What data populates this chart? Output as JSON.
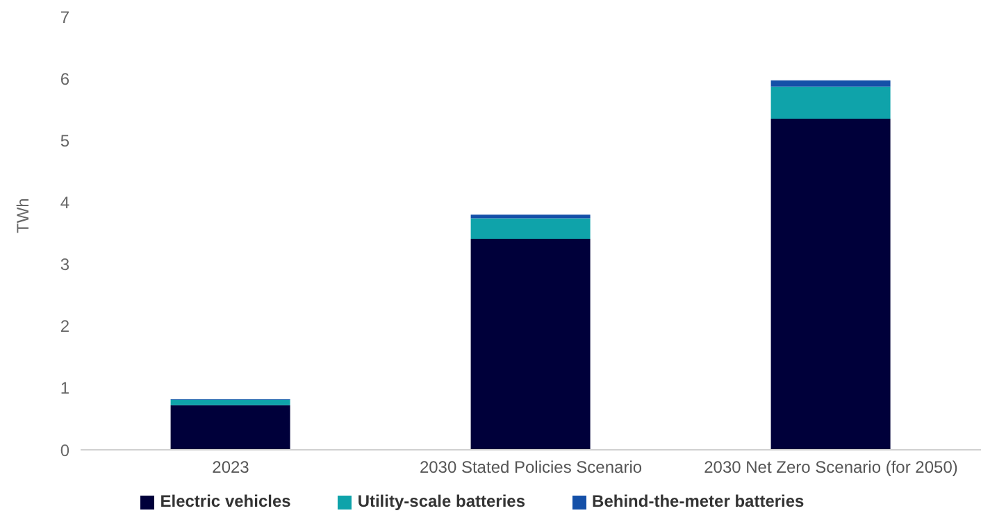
{
  "chart_data": {
    "type": "bar",
    "stacked": true,
    "ylabel": "TWh",
    "categories": [
      "2023",
      "2030 Stated Policies Scenario",
      "2030 Net Zero Scenario (for 2050)"
    ],
    "series": [
      {
        "name": "Electric vehicles",
        "color": "#00003a",
        "values": [
          0.72,
          3.41,
          5.35
        ]
      },
      {
        "name": "Utility-scale batteries",
        "color": "#0fa3aa",
        "values": [
          0.09,
          0.33,
          0.52
        ]
      },
      {
        "name": "Behind-the-meter batteries",
        "color": "#1450a8",
        "values": [
          0.01,
          0.06,
          0.1
        ]
      }
    ],
    "ylim": [
      0,
      7
    ],
    "yticks": [
      0,
      1,
      2,
      3,
      4,
      5,
      6,
      7
    ],
    "grid": false,
    "legend": "bottom"
  }
}
